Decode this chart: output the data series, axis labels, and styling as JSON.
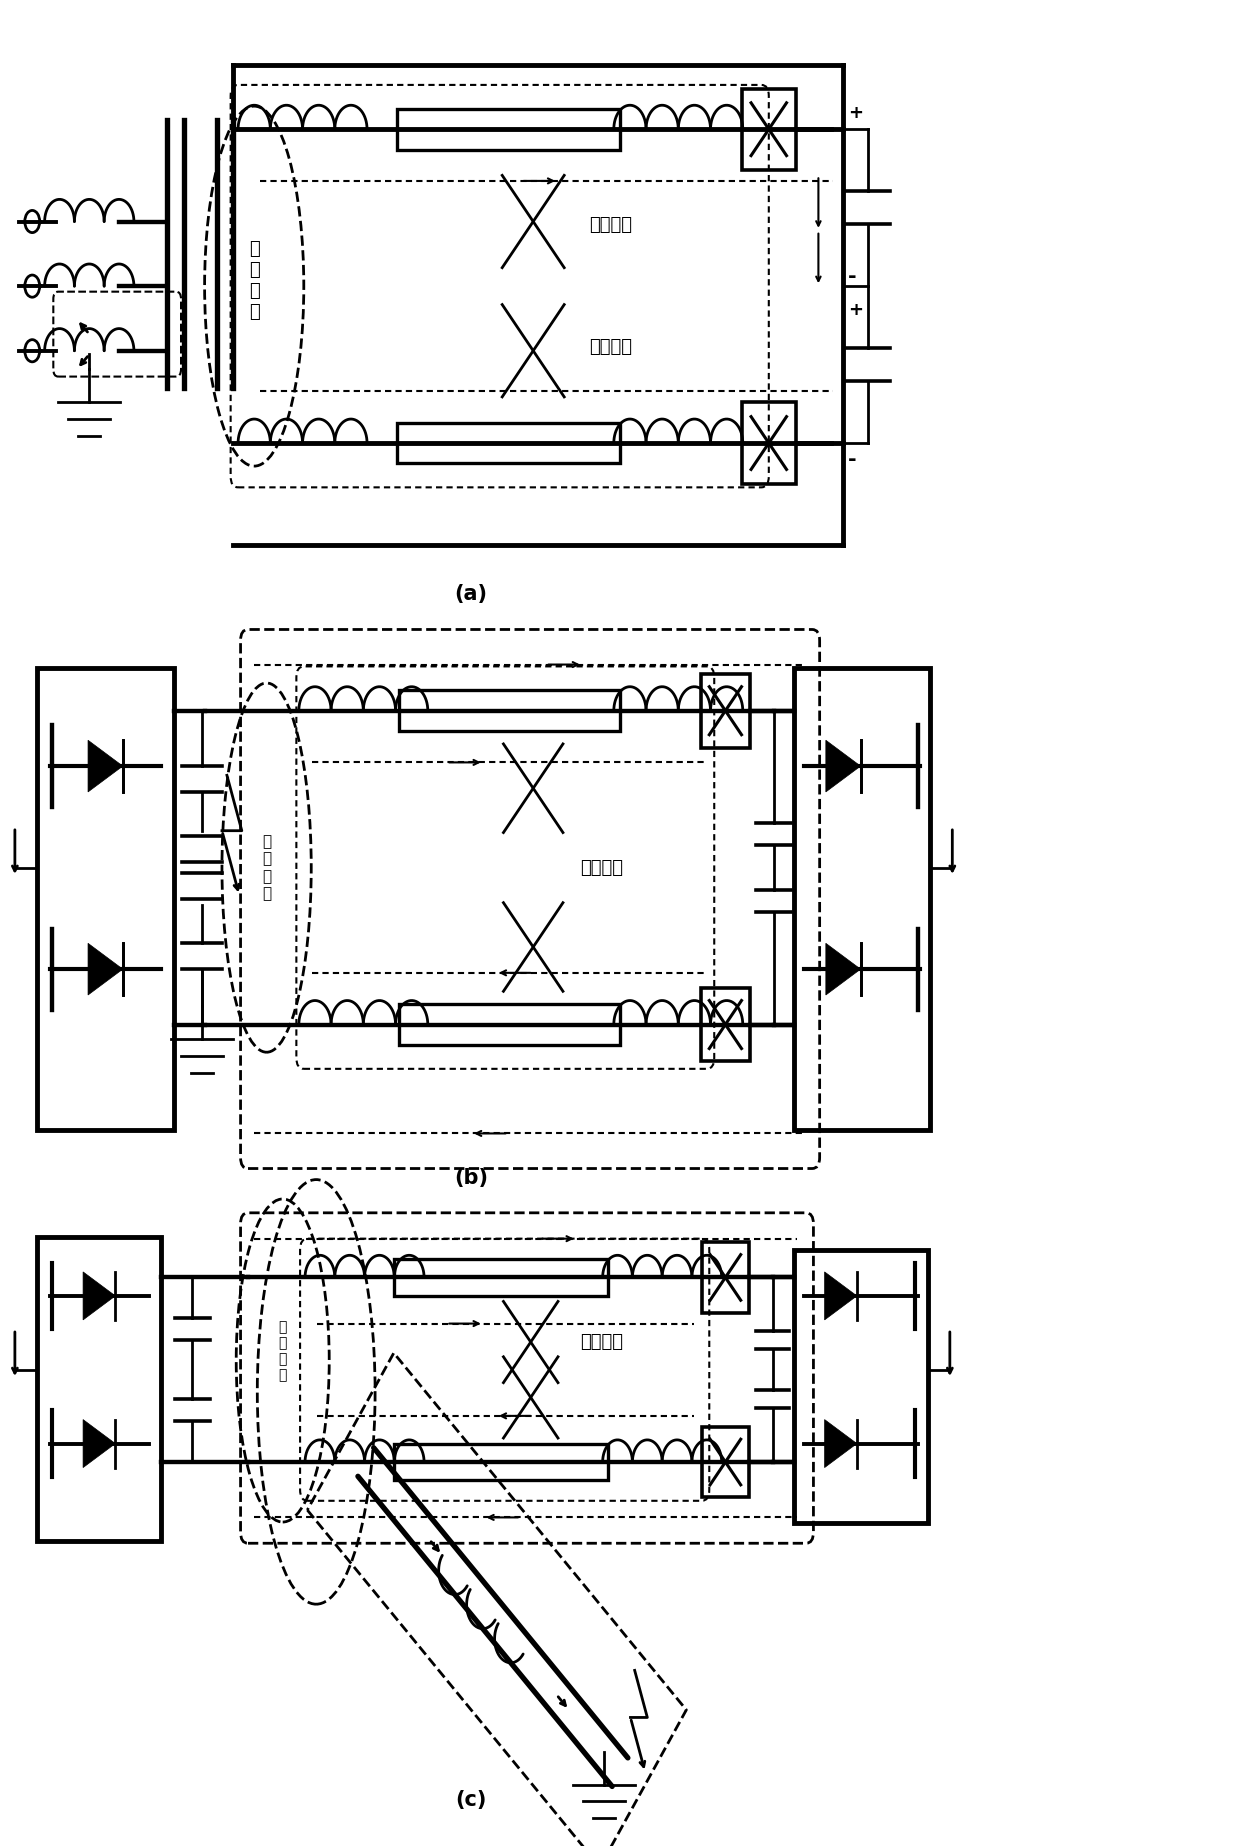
{
  "label_a": "(a)",
  "label_b": "(b)",
  "label_c": "(c)",
  "text_gaopinbianjie": "高频\n边界",
  "text_gaopinbianjie3": "高\n频\n边\n界",
  "text_gaopinfenliang": "高频分量",
  "bg_color": "#ffffff",
  "line_color": "#000000",
  "lw_thick": 3.5,
  "lw_medium": 2.0,
  "lw_thin": 1.5,
  "fontsize_label": 15,
  "fontsize_text": 13,
  "fontsize_small": 11,
  "fontsize_pm": 13
}
